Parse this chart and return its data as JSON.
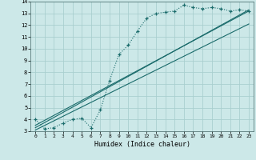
{
  "xlabel": "Humidex (Indice chaleur)",
  "xlim": [
    -0.5,
    23.5
  ],
  "ylim": [
    3,
    14
  ],
  "xticks": [
    0,
    1,
    2,
    3,
    4,
    5,
    6,
    7,
    8,
    9,
    10,
    11,
    12,
    13,
    14,
    15,
    16,
    17,
    18,
    19,
    20,
    21,
    22,
    23
  ],
  "yticks": [
    3,
    4,
    5,
    6,
    7,
    8,
    9,
    10,
    11,
    12,
    13,
    14
  ],
  "bg_color": "#cce8e8",
  "grid_color": "#aacfcf",
  "line_color": "#1a6b6b",
  "main_line_x": [
    0,
    1,
    2,
    3,
    4,
    5,
    6,
    7,
    8,
    9,
    10,
    11,
    12,
    13,
    14,
    15,
    16,
    17,
    18,
    19,
    20,
    21,
    22,
    23
  ],
  "main_line_y": [
    4.0,
    3.2,
    3.3,
    3.7,
    4.0,
    4.1,
    3.3,
    4.8,
    7.3,
    9.5,
    10.3,
    11.5,
    12.6,
    13.0,
    13.1,
    13.2,
    13.7,
    13.5,
    13.4,
    13.5,
    13.4,
    13.2,
    13.3,
    13.2
  ],
  "reg_lines": [
    {
      "x0": 0,
      "y0": 3.3,
      "x1": 23,
      "y1": 13.3
    },
    {
      "x0": 0,
      "y0": 3.5,
      "x1": 23,
      "y1": 13.2
    },
    {
      "x0": 0,
      "y0": 3.1,
      "x1": 23,
      "y1": 12.1
    }
  ]
}
